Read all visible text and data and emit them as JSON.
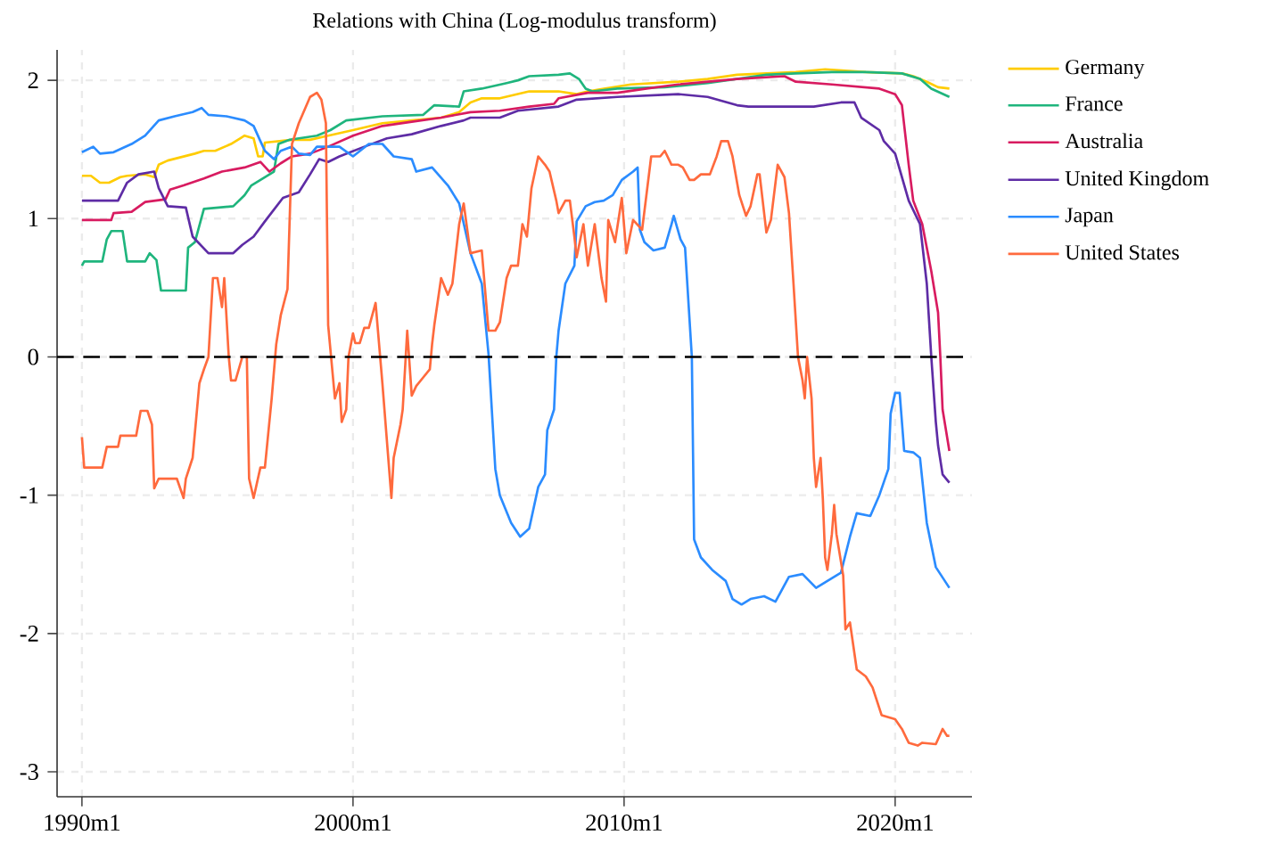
{
  "chart_data": {
    "type": "line",
    "title": "Relations with China (Log-modulus transform)",
    "xlim": [
      "1989-02",
      "2022-11"
    ],
    "ylim": [
      -3.18,
      2.22
    ],
    "xticks": [
      {
        "value": "1990-01",
        "label": "1990m1"
      },
      {
        "value": "2000-01",
        "label": "2000m1"
      },
      {
        "value": "2010-01",
        "label": "2010m1"
      },
      {
        "value": "2020-01",
        "label": "2020m1"
      }
    ],
    "yticks": [
      -3,
      -2,
      -1,
      0,
      1,
      2
    ],
    "grid": true,
    "legend": "right",
    "marker": "none",
    "line_style": "solid",
    "ref_lines": [
      {
        "axis": "y",
        "value": 0,
        "color": "#000000",
        "line_style": "dashed"
      }
    ],
    "series": [
      {
        "name": "Germany",
        "color": "#ffcc00",
        "x": [
          "1990-01",
          "1990-05",
          "1990-09",
          "1991-01",
          "1991-06",
          "1991-09",
          "1992-05",
          "1992-09",
          "1992-11",
          "1993-03",
          "1994-03",
          "1994-07",
          "1994-12",
          "1995-07",
          "1995-11",
          "1996-01",
          "1996-05",
          "1996-07",
          "1996-09",
          "1996-10",
          "1997-04",
          "1997-10",
          "1998-06",
          "1999-02",
          "2000-01",
          "2001-02",
          "2002-03",
          "2003-04",
          "2003-12",
          "2004-05",
          "2004-10",
          "2005-06",
          "2006-07",
          "2007-08",
          "2008-04",
          "2008-09",
          "2009-04",
          "2010-04",
          "2012-01",
          "2013-02",
          "2014-03",
          "2015-04",
          "2016-05",
          "2017-06",
          "2018-12",
          "2020-04",
          "2020-09",
          "2021-03",
          "2021-08",
          "2022-01"
        ],
        "values": [
          1.31,
          1.31,
          1.26,
          1.26,
          1.3,
          1.31,
          1.32,
          1.3,
          1.39,
          1.42,
          1.47,
          1.49,
          1.49,
          1.54,
          1.58,
          1.6,
          1.58,
          1.45,
          1.45,
          1.55,
          1.56,
          1.57,
          1.57,
          1.6,
          1.64,
          1.69,
          1.71,
          1.73,
          1.77,
          1.84,
          1.87,
          1.87,
          1.92,
          1.92,
          1.9,
          1.92,
          1.94,
          1.97,
          1.99,
          2.01,
          2.04,
          2.05,
          2.06,
          2.08,
          2.06,
          2.05,
          2.03,
          1.99,
          1.95,
          1.94
        ]
      },
      {
        "name": "France",
        "color": "#1fb57d",
        "x": [
          "1990-01",
          "1990-02",
          "1990-10",
          "1990-12",
          "1991-02",
          "1991-07",
          "1991-09",
          "1992-05",
          "1992-07",
          "1992-10",
          "1992-12",
          "1993-11",
          "1993-12",
          "1994-03",
          "1994-07",
          "1995-08",
          "1996-01",
          "1996-04",
          "1996-09",
          "1997-02",
          "1997-04",
          "1997-09",
          "1998-01",
          "1998-09",
          "1999-03",
          "1999-10",
          "2001-02",
          "2002-08",
          "2003-01",
          "2003-12",
          "2004-02",
          "2004-10",
          "2005-09",
          "2006-02",
          "2006-07",
          "2007-08",
          "2008-01",
          "2008-05",
          "2008-08",
          "2008-11",
          "2009-10",
          "2011-07",
          "2013-02",
          "2014-03",
          "2015-04",
          "2016-05",
          "2017-09",
          "2018-12",
          "2020-04",
          "2020-12",
          "2021-05",
          "2022-01"
        ],
        "values": [
          0.66,
          0.69,
          0.69,
          0.85,
          0.91,
          0.91,
          0.69,
          0.69,
          0.75,
          0.7,
          0.48,
          0.48,
          0.79,
          0.83,
          1.07,
          1.09,
          1.17,
          1.24,
          1.29,
          1.34,
          1.54,
          1.57,
          1.58,
          1.6,
          1.64,
          1.71,
          1.74,
          1.75,
          1.82,
          1.81,
          1.92,
          1.94,
          1.98,
          2.0,
          2.03,
          2.04,
          2.05,
          2.01,
          1.94,
          1.92,
          1.94,
          1.95,
          1.98,
          2.01,
          2.04,
          2.05,
          2.06,
          2.06,
          2.05,
          2.01,
          1.94,
          1.88
        ]
      },
      {
        "name": "Australia",
        "color": "#d81b60",
        "x": [
          "1990-01",
          "1991-02",
          "1991-03",
          "1991-11",
          "1992-05",
          "1993-02",
          "1993-04",
          "1993-10",
          "1994-07",
          "1995-03",
          "1996-01",
          "1996-08",
          "1996-12",
          "1997-05",
          "1997-10",
          "1998-06",
          "1999-02",
          "2000-01",
          "2001-02",
          "2002-03",
          "2003-04",
          "2004-05",
          "2005-06",
          "2006-07",
          "2007-06",
          "2007-08",
          "2008-09",
          "2009-10",
          "2010-11",
          "2012-01",
          "2013-02",
          "2014-03",
          "2015-12",
          "2016-05",
          "2017-09",
          "2019-06",
          "2020-01",
          "2020-04",
          "2020-07",
          "2020-09",
          "2021-01",
          "2021-05",
          "2021-08",
          "2021-09",
          "2021-10",
          "2022-01"
        ],
        "values": [
          0.99,
          0.99,
          1.04,
          1.05,
          1.12,
          1.14,
          1.21,
          1.24,
          1.29,
          1.34,
          1.37,
          1.41,
          1.34,
          1.4,
          1.45,
          1.47,
          1.52,
          1.6,
          1.67,
          1.7,
          1.73,
          1.77,
          1.78,
          1.81,
          1.83,
          1.87,
          1.91,
          1.91,
          1.94,
          1.97,
          1.99,
          2.01,
          2.03,
          1.99,
          1.97,
          1.94,
          1.9,
          1.82,
          1.39,
          1.13,
          0.96,
          0.62,
          0.32,
          0.0,
          -0.38,
          -0.68
        ]
      },
      {
        "name": "United Kingdom",
        "color": "#5e2ca5",
        "x": [
          "1990-01",
          "1991-05",
          "1991-09",
          "1992-02",
          "1992-09",
          "1992-11",
          "1993-03",
          "1993-11",
          "1994-02",
          "1994-09",
          "1995-08",
          "1995-12",
          "1996-05",
          "1996-10",
          "1997-06",
          "1998-01",
          "1998-06",
          "1998-10",
          "1999-02",
          "1999-07",
          "2000-06",
          "2001-04",
          "2002-03",
          "2003-04",
          "2004-02",
          "2004-05",
          "2005-06",
          "2006-02",
          "2007-08",
          "2008-04",
          "2009-10",
          "2012-01",
          "2013-02",
          "2014-03",
          "2014-08",
          "2017-01",
          "2018-01",
          "2018-07",
          "2018-10",
          "2019-06",
          "2019-08",
          "2020-01",
          "2020-07",
          "2020-12",
          "2021-03",
          "2021-05",
          "2021-07",
          "2021-08",
          "2021-10",
          "2022-01"
        ],
        "values": [
          1.13,
          1.13,
          1.26,
          1.32,
          1.34,
          1.22,
          1.09,
          1.08,
          0.87,
          0.75,
          0.75,
          0.81,
          0.87,
          0.98,
          1.15,
          1.19,
          1.32,
          1.43,
          1.41,
          1.45,
          1.52,
          1.58,
          1.61,
          1.67,
          1.71,
          1.73,
          1.73,
          1.78,
          1.81,
          1.86,
          1.88,
          1.9,
          1.88,
          1.82,
          1.81,
          1.81,
          1.84,
          1.84,
          1.73,
          1.64,
          1.56,
          1.47,
          1.13,
          0.96,
          0.53,
          0.0,
          -0.47,
          -0.64,
          -0.85,
          -0.91
        ]
      },
      {
        "name": "Japan",
        "color": "#2b8cff",
        "x": [
          "1990-01",
          "1990-06",
          "1990-09",
          "1991-03",
          "1991-11",
          "1992-05",
          "1992-11",
          "1993-06",
          "1994-02",
          "1994-06",
          "1994-09",
          "1995-05",
          "1996-01",
          "1996-05",
          "1996-08",
          "1996-10",
          "1997-02",
          "1997-05",
          "1997-10",
          "1998-01",
          "1998-06",
          "1998-09",
          "1999-05",
          "1999-07",
          "2000-01",
          "2000-08",
          "2001-02",
          "2001-07",
          "2002-03",
          "2002-05",
          "2002-12",
          "2003-07",
          "2003-12",
          "2004-05",
          "2004-10",
          "2005-01",
          "2005-04",
          "2005-06",
          "2005-11",
          "2006-03",
          "2006-07",
          "2006-11",
          "2007-02",
          "2007-03",
          "2007-06",
          "2007-07",
          "2007-08",
          "2007-11",
          "2008-03",
          "2008-04",
          "2008-08",
          "2008-12",
          "2009-04",
          "2009-08",
          "2009-12",
          "2010-05",
          "2010-07",
          "2010-08",
          "2010-10",
          "2011-02",
          "2011-07",
          "2011-10",
          "2011-11",
          "2012-02",
          "2012-04",
          "2012-07",
          "2012-08",
          "2012-11",
          "2013-04",
          "2013-10",
          "2014-01",
          "2014-05",
          "2014-09",
          "2015-03",
          "2015-08",
          "2015-10",
          "2016-02",
          "2016-08",
          "2017-02",
          "2017-07",
          "2018-01",
          "2018-05",
          "2018-08",
          "2019-02",
          "2019-06",
          "2019-10",
          "2019-11",
          "2020-01",
          "2020-03",
          "2020-05",
          "2020-09",
          "2020-12",
          "2021-03",
          "2021-07",
          "2022-01"
        ],
        "values": [
          1.48,
          1.52,
          1.47,
          1.48,
          1.54,
          1.6,
          1.71,
          1.74,
          1.77,
          1.8,
          1.75,
          1.74,
          1.71,
          1.67,
          1.56,
          1.49,
          1.43,
          1.49,
          1.52,
          1.47,
          1.46,
          1.52,
          1.52,
          1.52,
          1.45,
          1.54,
          1.54,
          1.45,
          1.43,
          1.34,
          1.37,
          1.24,
          1.11,
          0.75,
          0.53,
          0.02,
          -0.81,
          -1.0,
          -1.2,
          -1.3,
          -1.24,
          -0.94,
          -0.85,
          -0.53,
          -0.38,
          0.0,
          0.19,
          0.53,
          0.66,
          0.98,
          1.09,
          1.12,
          1.13,
          1.17,
          1.28,
          1.34,
          1.37,
          0.92,
          0.83,
          0.77,
          0.79,
          0.96,
          1.02,
          0.85,
          0.79,
          0.0,
          -1.32,
          -1.45,
          -1.54,
          -1.62,
          -1.75,
          -1.79,
          -1.75,
          -1.73,
          -1.77,
          -1.71,
          -1.59,
          -1.57,
          -1.67,
          -1.62,
          -1.56,
          -1.3,
          -1.13,
          -1.15,
          -1.0,
          -0.81,
          -0.41,
          -0.26,
          -0.26,
          -0.68,
          -0.69,
          -0.73,
          -1.2,
          -1.52,
          -1.67
        ]
      },
      {
        "name": "United States",
        "color": "#ff6a3d",
        "x": [
          "1990-01",
          "1990-02",
          "1990-10",
          "1990-12",
          "1991-05",
          "1991-06",
          "1992-01",
          "1992-03",
          "1992-06",
          "1992-08",
          "1992-09",
          "1992-11",
          "1993-07",
          "1993-10",
          "1993-11",
          "1994-02",
          "1994-05",
          "1994-07",
          "1994-09",
          "1994-11",
          "1995-01",
          "1995-03",
          "1995-04",
          "1995-06",
          "1995-07",
          "1995-09",
          "1995-12",
          "1996-02",
          "1996-03",
          "1996-05",
          "1996-08",
          "1996-10",
          "1997-01",
          "1997-03",
          "1997-05",
          "1997-08",
          "1997-10",
          "1998-01",
          "1998-06",
          "1998-09",
          "1998-11",
          "1999-01",
          "1999-02",
          "1999-05",
          "1999-07",
          "1999-08",
          "1999-10",
          "1999-11",
          "2000-01",
          "2000-02",
          "2000-04",
          "2000-06",
          "2000-08",
          "2000-11",
          "2001-02",
          "2001-06",
          "2001-07",
          "2001-10",
          "2001-11",
          "2002-01",
          "2002-03",
          "2002-05",
          "2002-08",
          "2002-11",
          "2002-12",
          "2003-01",
          "2003-04",
          "2003-07",
          "2003-09",
          "2003-12",
          "2004-02",
          "2004-05",
          "2004-10",
          "2005-01",
          "2005-04",
          "2005-06",
          "2005-09",
          "2005-11",
          "2006-02",
          "2006-04",
          "2006-06",
          "2006-08",
          "2006-11",
          "2007-02",
          "2007-04",
          "2007-07",
          "2007-08",
          "2007-11",
          "2008-01",
          "2008-03",
          "2008-04",
          "2008-07",
          "2008-09",
          "2008-12",
          "2009-03",
          "2009-05",
          "2009-06",
          "2009-09",
          "2009-12",
          "2010-02",
          "2010-05",
          "2010-09",
          "2011-01",
          "2011-05",
          "2011-07",
          "2011-10",
          "2012-01",
          "2012-03",
          "2012-06",
          "2012-08",
          "2012-11",
          "2013-03",
          "2013-06",
          "2013-08",
          "2013-11",
          "2014-01",
          "2014-04",
          "2014-07",
          "2014-09",
          "2014-12",
          "2015-01",
          "2015-04",
          "2015-06",
          "2015-09",
          "2015-12",
          "2016-02",
          "2016-04",
          "2016-06",
          "2016-08",
          "2016-09",
          "2016-10",
          "2016-12",
          "2017-01",
          "2017-02",
          "2017-04",
          "2017-05",
          "2017-06",
          "2017-07",
          "2017-09",
          "2017-10",
          "2017-11",
          "2018-02",
          "2018-03",
          "2018-05",
          "2018-08",
          "2018-12",
          "2019-03",
          "2019-07",
          "2019-11",
          "2020-01",
          "2020-04",
          "2020-07",
          "2020-11",
          "2021-01",
          "2021-07",
          "2021-10",
          "2021-12",
          "2022-01"
        ],
        "values": [
          -0.58,
          -0.8,
          -0.8,
          -0.65,
          -0.65,
          -0.57,
          -0.57,
          -0.39,
          -0.39,
          -0.49,
          -0.95,
          -0.88,
          -0.88,
          -1.02,
          -0.88,
          -0.73,
          -0.19,
          -0.09,
          0.0,
          0.57,
          0.57,
          0.36,
          0.57,
          0.0,
          -0.17,
          -0.17,
          0.0,
          0.0,
          -0.88,
          -1.02,
          -0.8,
          -0.8,
          -0.3,
          0.09,
          0.3,
          0.49,
          1.54,
          1.69,
          1.88,
          1.91,
          1.86,
          1.69,
          0.23,
          -0.3,
          -0.19,
          -0.47,
          -0.38,
          0.0,
          0.17,
          0.1,
          0.1,
          0.21,
          0.21,
          0.39,
          -0.19,
          -1.02,
          -0.73,
          -0.49,
          -0.38,
          0.19,
          -0.28,
          -0.21,
          -0.15,
          -0.09,
          0.09,
          0.23,
          0.57,
          0.45,
          0.53,
          0.96,
          1.11,
          0.75,
          0.77,
          0.19,
          0.19,
          0.25,
          0.57,
          0.66,
          0.66,
          0.96,
          0.87,
          1.22,
          1.45,
          1.39,
          1.34,
          1.13,
          1.04,
          1.13,
          1.13,
          0.87,
          0.72,
          0.96,
          0.66,
          0.96,
          0.57,
          0.4,
          0.99,
          0.83,
          1.15,
          0.75,
          0.99,
          0.92,
          1.45,
          1.45,
          1.49,
          1.39,
          1.39,
          1.37,
          1.28,
          1.28,
          1.32,
          1.32,
          1.45,
          1.56,
          1.56,
          1.45,
          1.17,
          1.02,
          1.09,
          1.32,
          1.32,
          0.9,
          0.99,
          1.39,
          1.3,
          1.04,
          0.53,
          0.0,
          -0.17,
          -0.3,
          0.0,
          -0.3,
          -0.73,
          -0.94,
          -0.73,
          -1.03,
          -1.45,
          -1.54,
          -1.28,
          -1.07,
          -1.28,
          -1.58,
          -1.97,
          -1.92,
          -2.26,
          -2.31,
          -2.39,
          -2.59,
          -2.61,
          -2.62,
          -2.69,
          -2.79,
          -2.81,
          -2.79,
          -2.8,
          -2.69,
          -2.74,
          -2.74
        ]
      }
    ]
  }
}
